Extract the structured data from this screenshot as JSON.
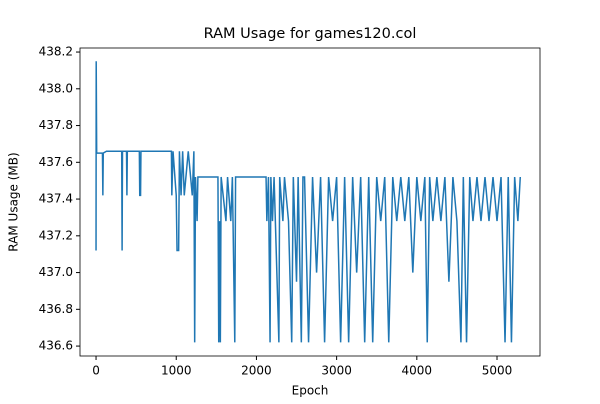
{
  "chart_data": {
    "type": "line",
    "title": "RAM Usage for games120.col",
    "x_label": "Epoch",
    "y_label": "RAM Usage (MB)",
    "xlim": [
      -200,
      5536
    ],
    "ylim": [
      436.546,
      438.222
    ],
    "xticks": [
      0,
      1000,
      2000,
      3000,
      4000,
      5000
    ],
    "yticks": [
      436.6,
      436.8,
      {
        "value": 437,
        "label": "437.0"
      },
      437.2,
      437.4,
      437.6,
      437.8,
      {
        "value": 438,
        "label": "438.0"
      },
      438.2
    ],
    "grid": false,
    "series": [
      {
        "name": "RAM Usage",
        "color": "#1f77b4",
        "x": [
          0,
          2,
          8,
          80,
          85,
          90,
          130,
          320,
          325,
          330,
          380,
          385,
          390,
          540,
          545,
          555,
          560,
          940,
          945,
          960,
          1000,
          1010,
          1030,
          1040,
          1060,
          1080,
          1100,
          1150,
          1200,
          1220,
          1230,
          1240,
          1260,
          1270,
          1520,
          1530,
          1540,
          1550,
          1560,
          1620,
          1640,
          1680,
          1700,
          1730,
          1740,
          2120,
          2130,
          2150,
          2170,
          2180,
          2200,
          2220,
          2280,
          2290,
          2330,
          2350,
          2400,
          2440,
          2460,
          2500,
          2520,
          2560,
          2580,
          2600,
          2650,
          2700,
          2750,
          2800,
          2850,
          2900,
          2950,
          3000,
          3050,
          3100,
          3150,
          3200,
          3250,
          3300,
          3350,
          3400,
          3450,
          3500,
          3550,
          3600,
          3650,
          3700,
          3750,
          3800,
          3850,
          3900,
          3950,
          4000,
          4050,
          4100,
          4130,
          4160,
          4200,
          4250,
          4300,
          4350,
          4400,
          4450,
          4500,
          4550,
          4580,
          4620,
          4660,
          4700,
          4750,
          4800,
          4850,
          4900,
          4950,
          5000,
          5050,
          5100,
          5140,
          5180,
          5220,
          5260,
          5290
        ],
        "values": [
          437.12,
          438.15,
          437.65,
          437.65,
          437.42,
          437.65,
          437.66,
          437.66,
          437.12,
          437.66,
          437.66,
          437.42,
          437.66,
          437.66,
          437.42,
          437.42,
          437.66,
          437.66,
          437.42,
          437.66,
          437.42,
          437.12,
          437.12,
          437.66,
          437.42,
          437.66,
          437.42,
          437.66,
          437.42,
          437.66,
          436.62,
          437.52,
          437.28,
          437.52,
          437.52,
          436.62,
          437.28,
          436.62,
          437.52,
          437.28,
          437.52,
          437.28,
          437.52,
          436.62,
          437.52,
          437.52,
          437.28,
          437.52,
          436.62,
          437.52,
          437.28,
          437.52,
          436.62,
          437.52,
          437.28,
          437.52,
          437.28,
          436.62,
          437.52,
          436.95,
          437.52,
          436.62,
          437.52,
          437.52,
          436.62,
          437.52,
          437.0,
          437.52,
          436.62,
          437.52,
          437.28,
          437.52,
          436.62,
          437.52,
          436.62,
          437.52,
          437.0,
          437.52,
          436.62,
          437.52,
          436.62,
          437.52,
          437.28,
          437.52,
          436.62,
          437.52,
          437.28,
          437.52,
          437.28,
          437.52,
          437.0,
          437.52,
          437.28,
          437.52,
          436.62,
          437.52,
          437.28,
          437.52,
          437.28,
          437.52,
          436.95,
          437.52,
          437.28,
          436.62,
          437.52,
          436.62,
          437.52,
          437.28,
          437.52,
          437.28,
          437.52,
          437.28,
          437.52,
          437.28,
          437.52,
          436.62,
          437.52,
          436.62,
          437.52,
          437.28,
          437.52
        ]
      }
    ]
  }
}
